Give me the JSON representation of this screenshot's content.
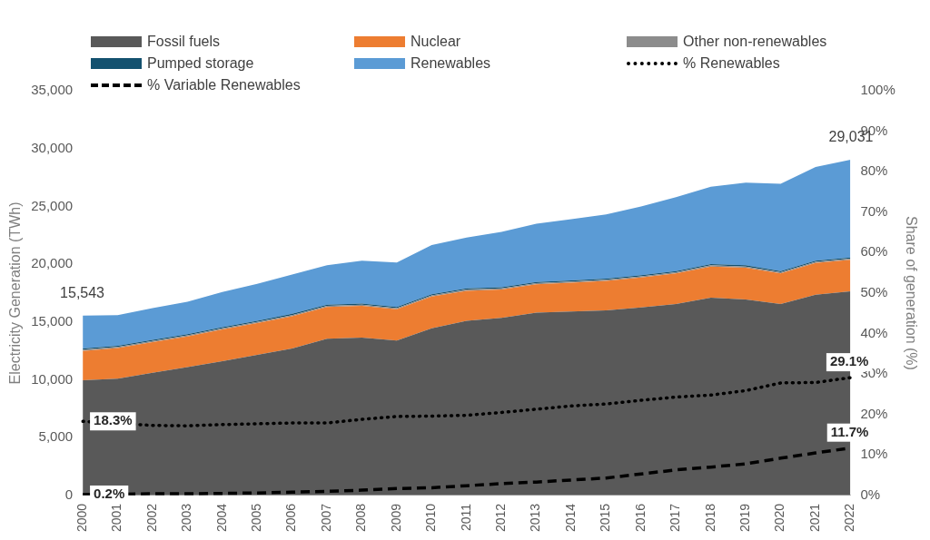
{
  "chart_data": {
    "type": "area",
    "stacked": true,
    "legend": "top",
    "grid": false,
    "categories": [
      "2000",
      "2001",
      "2002",
      "2003",
      "2004",
      "2005",
      "2006",
      "2007",
      "2008",
      "2009",
      "2010",
      "2011",
      "2012",
      "2013",
      "2014",
      "2015",
      "2016",
      "2017",
      "2018",
      "2019",
      "2020",
      "2021",
      "2022"
    ],
    "series": [
      {
        "name": "Fossil fuels",
        "color": "#595959",
        "values": [
          9950,
          10100,
          10600,
          11100,
          11600,
          12150,
          12700,
          13550,
          13650,
          13400,
          14450,
          15100,
          15350,
          15800,
          15900,
          16000,
          16250,
          16550,
          17100,
          16950,
          16550,
          17350,
          17650
        ]
      },
      {
        "name": "Nuclear",
        "color": "#ED7D31",
        "values": [
          2549,
          2650,
          2650,
          2650,
          2750,
          2750,
          2800,
          2750,
          2750,
          2700,
          2750,
          2600,
          2450,
          2450,
          2500,
          2550,
          2600,
          2650,
          2700,
          2750,
          2650,
          2750,
          2733
        ]
      },
      {
        "name": "Other non-renewables",
        "color": "#8C8C8C",
        "values": [
          100,
          100,
          100,
          100,
          100,
          100,
          100,
          100,
          100,
          100,
          100,
          100,
          100,
          100,
          100,
          100,
          100,
          100,
          100,
          100,
          100,
          100,
          100
        ]
      },
      {
        "name": "Pumped storage",
        "color": "#14516F",
        "values": [
          100,
          100,
          100,
          100,
          100,
          100,
          100,
          100,
          100,
          100,
          100,
          100,
          100,
          100,
          100,
          100,
          100,
          100,
          100,
          100,
          100,
          100,
          100
        ]
      },
      {
        "name": "Renewables",
        "color": "#5B9BD5",
        "values": [
          2844,
          2650,
          2750,
          2800,
          3050,
          3200,
          3400,
          3400,
          3700,
          3850,
          4250,
          4400,
          4800,
          5050,
          5300,
          5550,
          5950,
          6400,
          6700,
          7150,
          7550,
          8100,
          8448
        ]
      },
      {
        "name": "% Renewables",
        "type": "line",
        "axis": "y2",
        "color": "#000000",
        "line_style": "dotted",
        "values": [
          18.3,
          17.8,
          17.3,
          17.2,
          17.5,
          17.7,
          17.9,
          17.9,
          18.8,
          19.5,
          19.6,
          19.8,
          20.5,
          21.3,
          22.1,
          22.6,
          23.5,
          24.3,
          24.8,
          25.9,
          27.8,
          27.9,
          29.1
        ]
      },
      {
        "name": "% Variable Renewables",
        "type": "line",
        "axis": "y2",
        "color": "#000000",
        "line_style": "dashed",
        "values": [
          0.2,
          0.3,
          0.4,
          0.4,
          0.5,
          0.6,
          0.8,
          1.0,
          1.3,
          1.7,
          1.9,
          2.4,
          2.9,
          3.3,
          3.8,
          4.3,
          5.3,
          6.3,
          7.0,
          7.8,
          9.2,
          10.5,
          11.7
        ]
      }
    ],
    "y_label": "Electricity Generation (TWh)",
    "ylim": [
      0,
      35000
    ],
    "yticks": [
      0,
      {
        "value": 5000,
        "label": "5,000"
      },
      {
        "value": 10000,
        "label": "10,000"
      },
      {
        "value": 15000,
        "label": "15,000"
      },
      {
        "value": 20000,
        "label": "20,000"
      },
      {
        "value": 25000,
        "label": "25,000"
      },
      {
        "value": 30000,
        "label": "30,000"
      },
      {
        "value": 35000,
        "label": "35,000"
      }
    ],
    "y2_label": "Share of generation (%)",
    "y2lim": [
      0,
      100
    ],
    "y2ticks": [
      {
        "value": 0,
        "label": "0%"
      },
      {
        "value": 10,
        "label": "10%"
      },
      {
        "value": 20,
        "label": "20%"
      },
      {
        "value": 30,
        "label": "30%"
      },
      {
        "value": 40,
        "label": "40%"
      },
      {
        "value": 50,
        "label": "50%"
      },
      {
        "value": 60,
        "label": "60%"
      },
      {
        "value": 70,
        "label": "70%"
      },
      {
        "value": 80,
        "label": "80%"
      },
      {
        "value": 90,
        "label": "90%"
      },
      {
        "value": 100,
        "label": "100%"
      }
    ],
    "annotations": [
      {
        "x": "2000",
        "y": 15543,
        "text": "15,543"
      },
      {
        "x": "2022",
        "y": 29031,
        "text": "29,031"
      },
      {
        "x": "2000",
        "y": 18.3,
        "text": "18.3%",
        "axis": "y2"
      },
      {
        "x": "2022",
        "y": 29.1,
        "text": "29.1%",
        "axis": "y2"
      },
      {
        "x": "2000",
        "y": 0.2,
        "text": "0.2%",
        "axis": "y2"
      },
      {
        "x": "2022",
        "y": 11.7,
        "text": "11.7%",
        "axis": "y2"
      }
    ]
  }
}
